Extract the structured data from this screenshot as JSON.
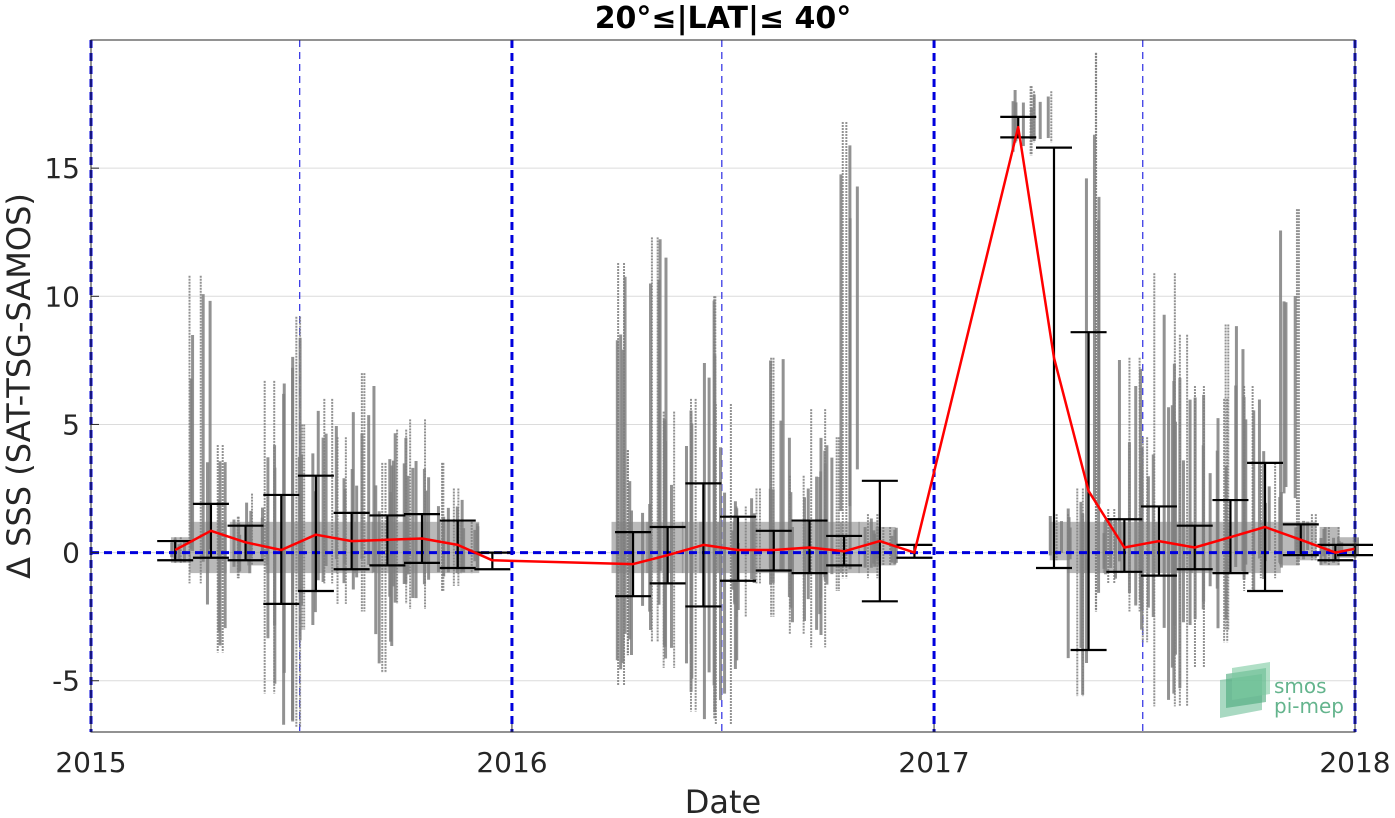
{
  "chart_data": {
    "type": "scatter",
    "title": "20°≤|LAT|≤ 40°",
    "xlabel": "Date",
    "ylabel": "Δ SSS (SAT-TSG-SAMOS)",
    "x_ticks": [
      "2015",
      "2016",
      "2017",
      "2018"
    ],
    "y_ticks": [
      -5,
      0,
      5,
      10,
      15
    ],
    "xlim": [
      "2015-01-01",
      "2018-01-01"
    ],
    "ylim": [
      -7,
      20
    ],
    "grid": "horizontal",
    "zero_line_color": "#0000dd",
    "year_line_color": "#0000dd",
    "mean_color": "#ff0000",
    "errorbar_color": "#000000",
    "scatter_color": "#808080",
    "monthly": [
      {
        "date": "2015-03-15",
        "mean": 0.1,
        "low": -0.3,
        "high": 0.45
      },
      {
        "date": "2015-04-15",
        "mean": 0.85,
        "low": -0.2,
        "high": 1.9
      },
      {
        "date": "2015-05-15",
        "mean": 0.4,
        "low": -0.3,
        "high": 1.05
      },
      {
        "date": "2015-06-15",
        "mean": 0.1,
        "low": -2.0,
        "high": 2.25
      },
      {
        "date": "2015-07-15",
        "mean": 0.7,
        "low": -1.5,
        "high": 3.0
      },
      {
        "date": "2015-08-15",
        "mean": 0.45,
        "low": -0.65,
        "high": 1.55
      },
      {
        "date": "2015-09-15",
        "mean": 0.5,
        "low": -0.5,
        "high": 1.45
      },
      {
        "date": "2015-10-15",
        "mean": 0.55,
        "low": -0.4,
        "high": 1.5
      },
      {
        "date": "2015-11-15",
        "mean": 0.3,
        "low": -0.6,
        "high": 1.25
      },
      {
        "date": "2015-12-15",
        "mean": -0.3,
        "low": -0.65,
        "high": 0.0
      },
      {
        "date": "2016-04-15",
        "mean": -0.45,
        "low": -1.7,
        "high": 0.8
      },
      {
        "date": "2016-05-15",
        "mean": -0.1,
        "low": -1.2,
        "high": 1.0
      },
      {
        "date": "2016-06-15",
        "mean": 0.3,
        "low": -2.1,
        "high": 2.7
      },
      {
        "date": "2016-07-15",
        "mean": 0.1,
        "low": -1.1,
        "high": 1.4
      },
      {
        "date": "2016-08-15",
        "mean": 0.1,
        "low": -0.7,
        "high": 0.85
      },
      {
        "date": "2016-09-15",
        "mean": 0.2,
        "low": -0.8,
        "high": 1.25
      },
      {
        "date": "2016-10-15",
        "mean": 0.05,
        "low": -0.5,
        "high": 0.65
      },
      {
        "date": "2016-11-15",
        "mean": 0.45,
        "low": -1.9,
        "high": 2.8
      },
      {
        "date": "2016-12-15",
        "mean": 0.0,
        "low": -0.2,
        "high": 0.3
      },
      {
        "date": "2017-03-15",
        "mean": 16.6,
        "low": 16.2,
        "high": 17.0
      },
      {
        "date": "2017-04-15",
        "mean": 7.6,
        "low": -0.6,
        "high": 15.8
      },
      {
        "date": "2017-05-15",
        "mean": 2.4,
        "low": -3.8,
        "high": 8.6
      },
      {
        "date": "2017-06-15",
        "mean": 0.2,
        "low": -0.75,
        "high": 1.3
      },
      {
        "date": "2017-07-15",
        "mean": 0.45,
        "low": -0.9,
        "high": 1.8
      },
      {
        "date": "2017-08-15",
        "mean": 0.2,
        "low": -0.65,
        "high": 1.05
      },
      {
        "date": "2017-09-15",
        "mean": 0.6,
        "low": -0.8,
        "high": 2.05
      },
      {
        "date": "2017-10-15",
        "mean": 1.0,
        "low": -1.5,
        "high": 3.5
      },
      {
        "date": "2017-11-15",
        "mean": 0.5,
        "low": -0.1,
        "high": 1.1
      },
      {
        "date": "2017-12-15",
        "mean": 0.0,
        "low": -0.3,
        "high": 0.3
      },
      {
        "date": "2018-01-01",
        "mean": 0.15,
        "low": -0.1,
        "high": 0.3
      }
    ],
    "scatter_clusters": [
      {
        "date": "2015-03-20",
        "low": -0.4,
        "high": 0.6
      },
      {
        "date": "2015-04-05",
        "low": -1.2,
        "high": 10.8
      },
      {
        "date": "2015-04-20",
        "low": -3.9,
        "high": 4.2
      },
      {
        "date": "2015-05-10",
        "low": -1.0,
        "high": 1.4
      },
      {
        "date": "2015-05-25",
        "low": -0.5,
        "high": 2.3
      },
      {
        "date": "2015-06-10",
        "low": -5.5,
        "high": 6.7
      },
      {
        "date": "2015-06-25",
        "low": -6.8,
        "high": 9.2
      },
      {
        "date": "2015-07-10",
        "low": -3.0,
        "high": 5.0
      },
      {
        "date": "2015-07-25",
        "low": -1.2,
        "high": 6.0
      },
      {
        "date": "2015-08-10",
        "low": -2.0,
        "high": 4.5
      },
      {
        "date": "2015-08-25",
        "low": -2.3,
        "high": 7.0
      },
      {
        "date": "2015-09-10",
        "low": -4.7,
        "high": 3.5
      },
      {
        "date": "2015-09-25",
        "low": -2.0,
        "high": 4.8
      },
      {
        "date": "2015-10-10",
        "low": -2.2,
        "high": 5.2
      },
      {
        "date": "2015-10-25",
        "low": -1.5,
        "high": 3.5
      },
      {
        "date": "2015-11-10",
        "low": -1.3,
        "high": 2.5
      },
      {
        "date": "2015-11-25",
        "low": -0.8,
        "high": 1.2
      },
      {
        "date": "2016-04-05",
        "low": -5.2,
        "high": 11.3
      },
      {
        "date": "2016-04-20",
        "low": -4.0,
        "high": 4.0
      },
      {
        "date": "2016-05-05",
        "low": -3.5,
        "high": 12.3
      },
      {
        "date": "2016-05-20",
        "low": -4.5,
        "high": 5.5
      },
      {
        "date": "2016-06-05",
        "low": -6.2,
        "high": 6.0
      },
      {
        "date": "2016-06-20",
        "low": -6.5,
        "high": 10.0
      },
      {
        "date": "2016-07-05",
        "low": -6.7,
        "high": 5.8
      },
      {
        "date": "2016-07-20",
        "low": -2.5,
        "high": 1.8
      },
      {
        "date": "2016-08-05",
        "low": -1.2,
        "high": 2.5
      },
      {
        "date": "2016-08-20",
        "low": -2.5,
        "high": 7.6
      },
      {
        "date": "2016-09-05",
        "low": -3.2,
        "high": 3.0
      },
      {
        "date": "2016-09-20",
        "low": -3.7,
        "high": 5.6
      },
      {
        "date": "2016-10-05",
        "low": -1.5,
        "high": 4.5
      },
      {
        "date": "2016-10-20",
        "low": -1.0,
        "high": 16.8
      },
      {
        "date": "2016-11-05",
        "low": -1.0,
        "high": 1.5
      },
      {
        "date": "2016-11-20",
        "low": -0.5,
        "high": 1.0
      },
      {
        "date": "2017-03-20",
        "low": 15.5,
        "high": 18.2
      },
      {
        "date": "2017-04-05",
        "low": 16.0,
        "high": 18.0
      },
      {
        "date": "2017-04-20",
        "low": -0.3,
        "high": 1.5
      },
      {
        "date": "2017-05-05",
        "low": -5.6,
        "high": 2.5
      },
      {
        "date": "2017-05-20",
        "low": -2.3,
        "high": 19.5
      },
      {
        "date": "2017-06-05",
        "low": -1.2,
        "high": 1.7
      },
      {
        "date": "2017-06-20",
        "low": -2.3,
        "high": 7.6
      },
      {
        "date": "2017-07-05",
        "low": -3.5,
        "high": 4.5
      },
      {
        "date": "2017-07-20",
        "low": -6.0,
        "high": 10.9
      },
      {
        "date": "2017-08-05",
        "low": -6.0,
        "high": 8.5
      },
      {
        "date": "2017-08-20",
        "low": -4.5,
        "high": 6.5
      },
      {
        "date": "2017-09-05",
        "low": -3.5,
        "high": 6.0
      },
      {
        "date": "2017-09-20",
        "low": -3.0,
        "high": 8.9
      },
      {
        "date": "2017-10-05",
        "low": -1.5,
        "high": 6.5
      },
      {
        "date": "2017-10-20",
        "low": -1.0,
        "high": 3.5
      },
      {
        "date": "2017-11-05",
        "low": -0.5,
        "high": 13.4
      },
      {
        "date": "2017-11-20",
        "low": -0.3,
        "high": 1.5
      },
      {
        "date": "2017-12-10",
        "low": -0.5,
        "high": 1.0
      },
      {
        "date": "2017-12-25",
        "low": -0.2,
        "high": 0.6
      }
    ]
  },
  "watermark": {
    "line1": "smos",
    "line2": "pi-mep"
  }
}
